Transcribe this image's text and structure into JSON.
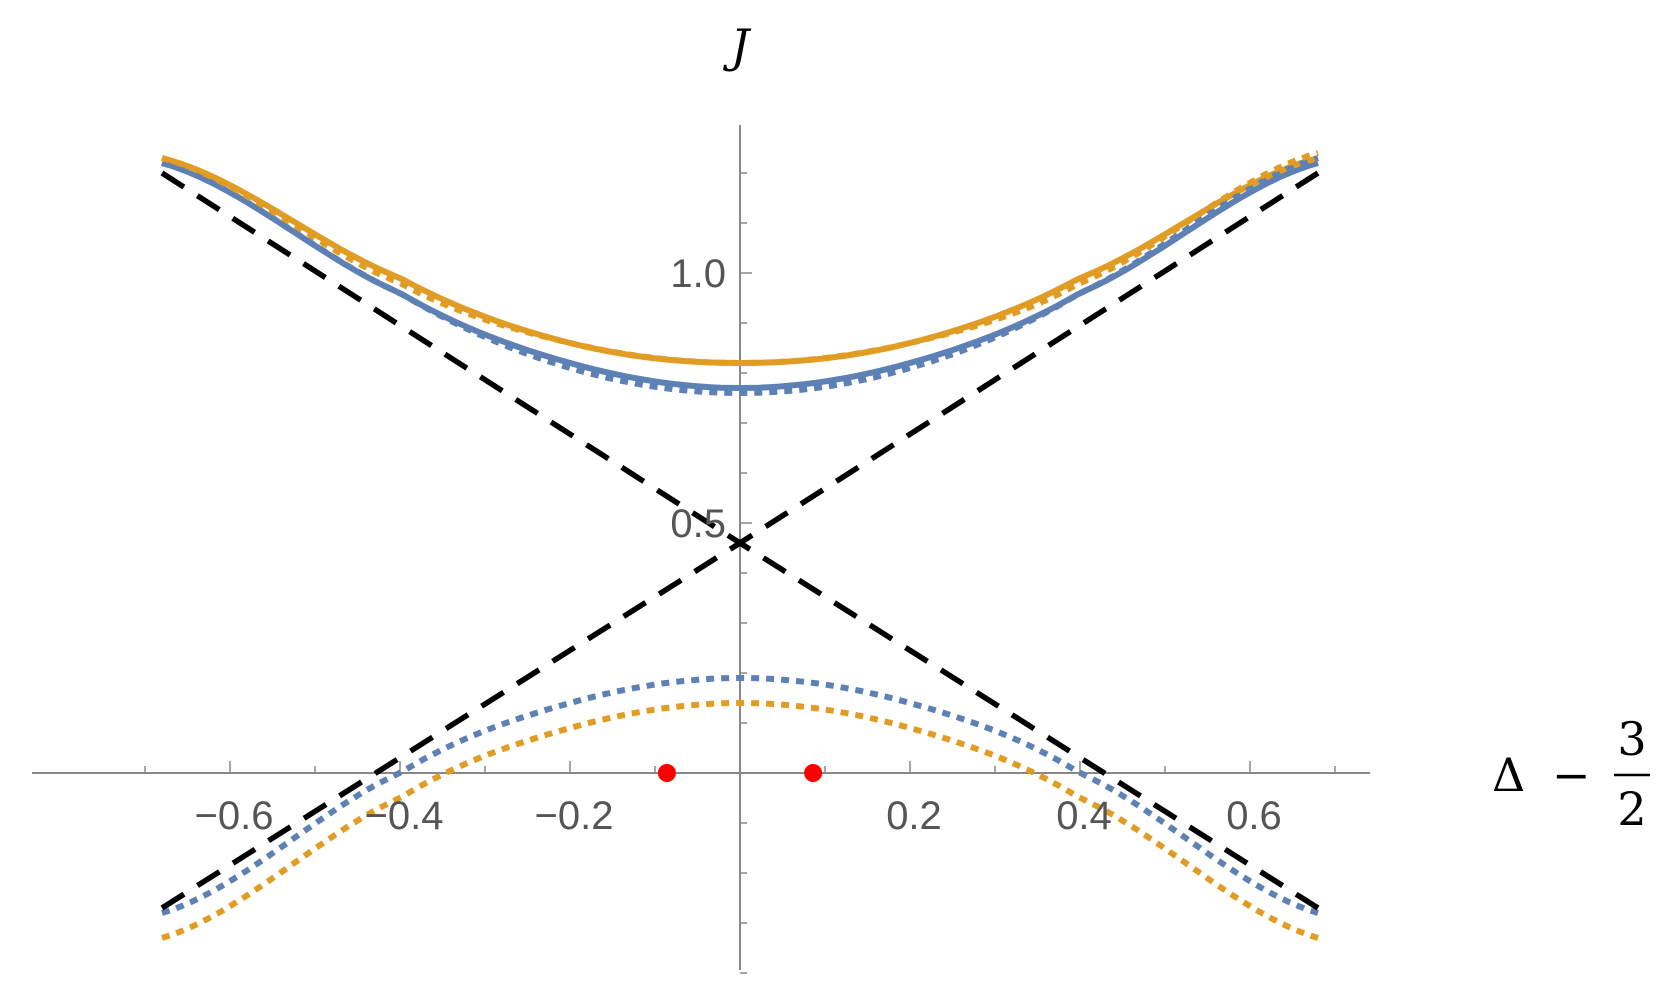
{
  "chart_data": {
    "type": "line",
    "title": "",
    "xlabel": {
      "symbol": "Δ",
      "minus": "−",
      "frac_num": "3",
      "frac_den": "2"
    },
    "ylabel": "J",
    "xlim": [
      -0.7,
      0.7
    ],
    "ylim": [
      -0.45,
      1.33
    ],
    "x_ticks": [
      -0.6,
      -0.4,
      -0.2,
      0.2,
      0.4,
      0.6
    ],
    "x_tick_labels": [
      "−0.6",
      "−0.4",
      "−0.2",
      "0.2",
      "0.4",
      "0.6"
    ],
    "y_ticks": [
      0.5,
      1.0
    ],
    "y_tick_labels": [
      "0.5",
      "1.0"
    ],
    "grid": false,
    "colors": {
      "blue": "#5e81b5",
      "orange": "#e19c24",
      "black": "#000000",
      "red": "#ff0000"
    },
    "series": [
      {
        "style": "solid",
        "color": "#5e81b5",
        "x": [
          -0.68,
          -0.4,
          -0.2,
          0.0,
          0.2,
          0.4,
          0.68
        ],
        "y": [
          1.22,
          0.96,
          0.82,
          0.77,
          0.82,
          0.96,
          1.22
        ]
      },
      {
        "style": "solid",
        "color": "#e19c24",
        "x": [
          -0.68,
          -0.4,
          -0.2,
          0.0,
          0.2,
          0.4,
          0.68
        ],
        "y": [
          1.23,
          0.99,
          0.86,
          0.82,
          0.86,
          0.99,
          1.23
        ]
      },
      {
        "style": "dotted",
        "color": "#5e81b5",
        "x": [
          -0.68,
          -0.4,
          -0.2,
          0.0,
          0.2,
          0.4,
          0.68
        ],
        "y": [
          1.22,
          0.96,
          0.81,
          0.76,
          0.81,
          0.96,
          1.23
        ]
      },
      {
        "style": "dotted",
        "color": "#e19c24",
        "x": [
          -0.68,
          -0.4,
          -0.2,
          0.0,
          0.2,
          0.4,
          0.68
        ],
        "y": [
          1.23,
          0.98,
          0.86,
          0.82,
          0.86,
          0.98,
          1.24
        ]
      },
      {
        "style": "dotted",
        "color": "#5e81b5",
        "x": [
          -0.68,
          -0.4,
          -0.2,
          0.0,
          0.2,
          0.4,
          0.68
        ],
        "y": [
          -0.28,
          0.0,
          0.14,
          0.19,
          0.14,
          0.0,
          -0.28
        ]
      },
      {
        "style": "dotted",
        "color": "#e19c24",
        "x": [
          -0.68,
          -0.4,
          -0.2,
          0.0,
          0.2,
          0.4,
          0.68
        ],
        "y": [
          -0.33,
          -0.05,
          0.09,
          0.14,
          0.09,
          -0.05,
          -0.33
        ]
      },
      {
        "style": "dashed",
        "color": "#000000",
        "x": [
          -0.68,
          0.0,
          0.68
        ],
        "y": [
          1.2,
          0.46,
          -0.27
        ]
      },
      {
        "style": "dashed",
        "color": "#000000",
        "x": [
          -0.68,
          0.0,
          0.68
        ],
        "y": [
          -0.27,
          0.46,
          1.2
        ]
      }
    ],
    "points": [
      {
        "color": "#ff0000",
        "x": -0.086,
        "y": 0.0
      },
      {
        "color": "#ff0000",
        "x": 0.086,
        "y": 0.0
      }
    ]
  }
}
